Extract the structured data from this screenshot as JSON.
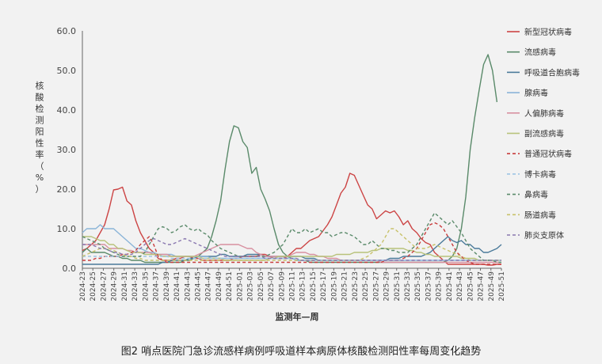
{
  "caption": "图2   哨点医院门急诊流感样病例呼吸道样本病原体核酸检测阳性率每周变化趋势",
  "chart_data": {
    "type": "line",
    "xlabel": "监测年—周",
    "ylabel": "核酸检测阳性率（%）",
    "ylim": [
      0,
      60
    ],
    "yticks": [
      "0.0",
      "10.0",
      "20.0",
      "30.0",
      "40.0",
      "50.0",
      "60.0"
    ],
    "xtick_labels": [
      "2024-23",
      "2024-25",
      "2024-27",
      "2024-29",
      "2024-31",
      "2024-33",
      "2024-35",
      "2024-37",
      "2024-39",
      "2024-41",
      "2024-43",
      "2024-45",
      "2024-47",
      "2024-49",
      "2024-51",
      "2025-01",
      "2025-03",
      "2025-05",
      "2025-07",
      "2025-09",
      "2025-11",
      "2025-13",
      "2025-15",
      "2025-17",
      "2025-19",
      "2025-21",
      "2025-23",
      "2025-25",
      "2025-27",
      "2025-29",
      "2025-31",
      "2025-33",
      "2025-35",
      "2025-37",
      "2025-39",
      "2025-41",
      "2025-43",
      "2025-45",
      "2025-47",
      "2025-49",
      "2025-51"
    ],
    "legend_position": "right",
    "grid": false,
    "series": [
      {
        "name": "新型冠状病毒",
        "color": "#cc4444",
        "dash": "solid",
        "values": [
          4.5,
          5,
          6,
          7,
          9,
          11,
          15,
          19.8,
          20,
          20.5,
          17,
          16,
          12,
          9,
          7,
          5,
          4,
          2.5,
          2,
          2,
          2,
          2.5,
          2.5,
          3,
          3,
          2.5,
          2.5,
          2,
          2,
          2,
          2,
          2,
          2,
          2,
          2.5,
          2.5,
          3,
          3,
          3,
          3,
          3.5,
          3.5,
          3,
          2.5,
          2.5,
          2.5,
          3,
          4,
          5,
          5,
          6,
          7,
          7.5,
          8,
          9.5,
          11,
          13,
          16,
          19,
          20.5,
          24,
          23.5,
          21,
          18.5,
          16,
          15,
          12.5,
          13.5,
          14.5,
          14,
          14.5,
          13,
          11,
          12,
          10,
          9,
          7.5,
          6.5,
          6,
          4,
          3,
          2,
          1,
          1,
          1,
          1,
          1,
          1,
          1,
          1,
          1,
          0.8,
          0.8,
          1,
          1
        ]
      },
      {
        "name": "流感病毒",
        "color": "#5a8a6a",
        "dash": "solid",
        "values": [
          4,
          5,
          4,
          4,
          4,
          4,
          3.5,
          3,
          3,
          2.5,
          2.5,
          2,
          2,
          2,
          1.5,
          1.5,
          1.5,
          1.5,
          1.5,
          1.5,
          1.5,
          1.5,
          1.5,
          2,
          2,
          2.5,
          3,
          4,
          5,
          8,
          12,
          17,
          25,
          32,
          36,
          35.5,
          32,
          30.5,
          24,
          25.5,
          20,
          17.5,
          14.5,
          10,
          6,
          4,
          3,
          2.5,
          2,
          2,
          2,
          1.5,
          1.5,
          1.5,
          1.5,
          1.5,
          1.5,
          1.5,
          1.5,
          1.5,
          1.5,
          1.5,
          1.5,
          1.5,
          1.5,
          1.5,
          1.5,
          1.5,
          1.5,
          1.5,
          1.5,
          1.5,
          1.5,
          1.5,
          1.5,
          1.5,
          1.5,
          1.5,
          1.5,
          1.5,
          1.5,
          1.5,
          2,
          3,
          5,
          10,
          18,
          30,
          38,
          45,
          51.5,
          54,
          50,
          42
        ]
      },
      {
        "name": "呼吸道合胞病毒",
        "color": "#4a7a9a",
        "dash": "solid",
        "values": [
          1,
          1,
          1,
          1,
          1,
          1,
          1,
          1,
          1,
          1,
          1,
          1,
          1,
          1,
          1,
          1,
          1,
          1,
          1.5,
          1.5,
          2,
          2,
          2,
          2,
          2.5,
          2.5,
          3,
          3,
          3,
          3,
          3,
          3.5,
          3.5,
          3,
          3,
          3,
          3,
          3.5,
          3.5,
          3.5,
          3.5,
          3,
          3,
          3,
          3,
          3,
          3,
          3,
          3,
          3,
          2.5,
          2.5,
          2.5,
          2,
          2,
          2,
          2,
          2,
          2,
          2,
          2,
          2,
          2,
          2,
          2,
          2,
          2,
          2,
          2,
          2.5,
          2.5,
          2.5,
          3,
          3,
          3,
          3,
          3,
          3.5,
          4,
          5,
          6,
          7,
          8,
          7,
          6.5,
          7,
          6,
          6,
          5,
          5,
          4,
          4,
          4.5,
          5,
          6
        ]
      },
      {
        "name": "腺病毒",
        "color": "#8ab4d8",
        "dash": "solid",
        "values": [
          9,
          10,
          10,
          10,
          11,
          10,
          10,
          10,
          9,
          8,
          7,
          6,
          5,
          5,
          4.5,
          4,
          4,
          3.5,
          3.5,
          3.5,
          3.5,
          3,
          3,
          3,
          3,
          3,
          3,
          3,
          3,
          2.5,
          2.5,
          2.5,
          2.5,
          2.5,
          2.5,
          2.5,
          2.5,
          2.5,
          2.5,
          2.5,
          2.5,
          2.5,
          2.5,
          2.5,
          2.5,
          2.5,
          2.5,
          2.5,
          2,
          2,
          2,
          2,
          2,
          2,
          2,
          2,
          2,
          2,
          2,
          2,
          2,
          2,
          2,
          2,
          2,
          2,
          2,
          2,
          2,
          2,
          2,
          2,
          2,
          2,
          2,
          2,
          2,
          2,
          2,
          2,
          2,
          2,
          2,
          2,
          2,
          2,
          2,
          2,
          2,
          2,
          2,
          2,
          2,
          2,
          2
        ]
      },
      {
        "name": "人偏肺病毒",
        "color": "#d890a0",
        "dash": "solid",
        "values": [
          6,
          6,
          6,
          6,
          6,
          6,
          5,
          5,
          5,
          5,
          4.5,
          4.5,
          4,
          4,
          4,
          4,
          3.5,
          3.5,
          3.5,
          3.5,
          3,
          3,
          3,
          3,
          3,
          3,
          3.5,
          4,
          4.5,
          5,
          5.5,
          6,
          6,
          6,
          6,
          6,
          5.5,
          5,
          5,
          4,
          3.5,
          3,
          3,
          3,
          3,
          3,
          3,
          3.5,
          4,
          4,
          4,
          3.5,
          3.5,
          3,
          3,
          2.5,
          2.5,
          2.5,
          2,
          2,
          2,
          2,
          2,
          2,
          2,
          2,
          2,
          1.5,
          1.5,
          1.5,
          1.5,
          1.5,
          1.5,
          1.5,
          1.5,
          1.5,
          1.5,
          1.5,
          1.5,
          1.5,
          1.5,
          1.5,
          1.5,
          1.5,
          1.5,
          1.5,
          1.5,
          1.5,
          1.5,
          1.5,
          1.5,
          1.5,
          1.5,
          1.5,
          1.5
        ]
      },
      {
        "name": "副流感病毒",
        "color": "#b8c27a",
        "dash": "solid",
        "values": [
          8,
          8,
          8,
          7.5,
          7,
          7,
          6,
          6,
          5,
          5,
          4.5,
          4,
          4,
          4,
          3.5,
          3.5,
          3.5,
          3.5,
          3,
          3,
          3,
          3,
          3,
          3,
          3,
          3,
          3,
          2.5,
          2.5,
          2.5,
          2.5,
          2.5,
          2,
          2,
          2,
          2,
          2,
          2,
          2,
          2,
          2,
          2,
          2.5,
          2.5,
          3,
          3,
          3,
          3,
          3,
          3,
          3,
          3,
          3,
          3,
          3,
          3,
          3,
          3.5,
          3.5,
          3.5,
          3.5,
          4,
          4,
          4,
          4,
          4.5,
          4.5,
          5,
          5,
          5,
          5,
          5,
          5,
          4.5,
          4.5,
          4,
          4,
          3.5,
          3.5,
          3,
          3,
          3,
          3,
          3,
          3,
          2.5,
          2.5,
          2.5,
          2.5,
          2,
          2,
          2,
          2,
          2,
          2
        ]
      },
      {
        "name": "普通冠状病毒",
        "color": "#c83c3c",
        "dash": "dash",
        "values": [
          2,
          2,
          2,
          2.5,
          2.5,
          3,
          3,
          3,
          3,
          3.5,
          3.5,
          4,
          4.5,
          6,
          7,
          8,
          6,
          3,
          2,
          1.5,
          1.5,
          1.5,
          1.5,
          1.5,
          1.5,
          1.5,
          1.5,
          1.5,
          1.5,
          1.5,
          1.5,
          1.5,
          1.5,
          1.5,
          1.5,
          1.5,
          1.5,
          1.5,
          1.5,
          1.5,
          1.5,
          1.5,
          1.5,
          1.5,
          1.5,
          1.5,
          1.5,
          1.5,
          1.5,
          1.5,
          1.5,
          1.5,
          1.5,
          1.5,
          1.5,
          1.5,
          1.5,
          1.5,
          1.5,
          1.5,
          1.5,
          1.5,
          1.5,
          1.5,
          1.5,
          1.5,
          1.5,
          1.5,
          2,
          2,
          2,
          2,
          2.5,
          3,
          4,
          5,
          7,
          9,
          11,
          11.5,
          11,
          10,
          8,
          6,
          4,
          3,
          2,
          1.5,
          1,
          1,
          1,
          1,
          1,
          1,
          1
        ]
      },
      {
        "name": "博卡病毒",
        "color": "#9ec4e4",
        "dash": "dash",
        "values": [
          3,
          3,
          3,
          3,
          3,
          3,
          3,
          3,
          3,
          3,
          3,
          3,
          3,
          3,
          3,
          3,
          3,
          3,
          3,
          3,
          2.5,
          2.5,
          2.5,
          2.5,
          2.5,
          2.5,
          2.5,
          2.5,
          2.5,
          2.5,
          2.5,
          2.5,
          2.5,
          2.5,
          2.5,
          2.5,
          2.5,
          2.5,
          2.5,
          2.5,
          2.5,
          2.5,
          2.5,
          2.5,
          2.5,
          2.5,
          2.5,
          2.5,
          2.5,
          2,
          2,
          2,
          2,
          2,
          2,
          2,
          2,
          2,
          2,
          2,
          2,
          2,
          2,
          2,
          2,
          2,
          2,
          2,
          2,
          2,
          2,
          2,
          2,
          2,
          2,
          2,
          2,
          2,
          2,
          2,
          2,
          2,
          2,
          2,
          2,
          2,
          2,
          2,
          2,
          2,
          2,
          2,
          2,
          2,
          2
        ]
      },
      {
        "name": "鼻病毒",
        "color": "#5a8a6a",
        "dash": "dash",
        "values": [
          8,
          7.5,
          7,
          6.5,
          6,
          5,
          4.5,
          4,
          3.5,
          3,
          3,
          3,
          3,
          3,
          4,
          6,
          8,
          10,
          10.5,
          10,
          9,
          9.5,
          10.5,
          11,
          10,
          9.5,
          10,
          9,
          8.5,
          7,
          6,
          5,
          4.5,
          4,
          3.5,
          3,
          3,
          3,
          3,
          3,
          3,
          3,
          3.5,
          4,
          5,
          6,
          8,
          10,
          9,
          9,
          10,
          9,
          9.5,
          10,
          9,
          9,
          8,
          8.5,
          9,
          9,
          8.5,
          8,
          7,
          6,
          6,
          7,
          6,
          5,
          5,
          4.5,
          4.5,
          4,
          4,
          4,
          5,
          6,
          8,
          10,
          12,
          14,
          13,
          12,
          11,
          12,
          10.5,
          9,
          7,
          5,
          4,
          3,
          2,
          2,
          2,
          1.5,
          1.5
        ]
      },
      {
        "name": "肠道病毒",
        "color": "#c8c26a",
        "dash": "dash",
        "values": [
          3,
          3.5,
          4,
          4.5,
          5,
          5,
          5,
          4.5,
          4,
          3.5,
          3,
          3,
          2.5,
          2.5,
          2,
          2,
          2,
          2,
          2,
          2,
          2,
          2,
          2,
          2,
          2,
          2,
          2,
          2,
          2,
          2,
          2,
          2,
          2,
          2,
          2,
          2,
          2,
          2,
          2,
          2,
          2,
          2,
          2,
          2,
          2,
          2,
          2,
          2,
          2,
          2,
          2,
          2,
          2,
          2,
          2,
          2,
          2,
          2,
          2,
          2,
          2,
          2,
          2,
          2.5,
          3,
          4,
          5,
          6,
          8,
          10,
          10,
          9,
          8,
          7,
          6,
          5,
          5,
          5,
          5.5,
          6,
          5.5,
          5,
          4.5,
          4,
          3.5,
          3,
          2.5,
          2,
          2,
          2,
          2,
          2,
          2,
          2,
          2
        ]
      },
      {
        "name": "肺炎支原体",
        "color": "#8a78b0",
        "dash": "dash",
        "values": [
          6,
          6,
          6,
          5.5,
          5,
          5,
          4.5,
          4,
          4,
          3.5,
          3.5,
          3.5,
          4,
          5,
          6,
          7,
          7.5,
          7,
          6.5,
          6,
          6,
          6.5,
          7,
          7.5,
          7,
          6.5,
          6,
          5.5,
          5,
          4.5,
          4,
          3.5,
          3,
          3,
          3,
          3,
          3,
          3,
          3,
          3,
          3,
          2.5,
          2.5,
          2.5,
          2.5,
          2.5,
          2.5,
          2.5,
          2.5,
          2,
          2,
          2,
          2,
          2,
          2,
          2,
          2,
          2,
          2,
          2,
          2,
          2,
          2,
          2,
          2,
          2,
          2,
          2,
          2,
          2,
          2,
          2,
          2,
          2,
          2,
          2,
          2,
          2,
          2,
          2,
          2,
          2,
          2,
          2,
          2,
          2,
          2,
          2,
          2,
          2,
          2,
          2,
          2,
          2,
          2
        ]
      }
    ]
  }
}
